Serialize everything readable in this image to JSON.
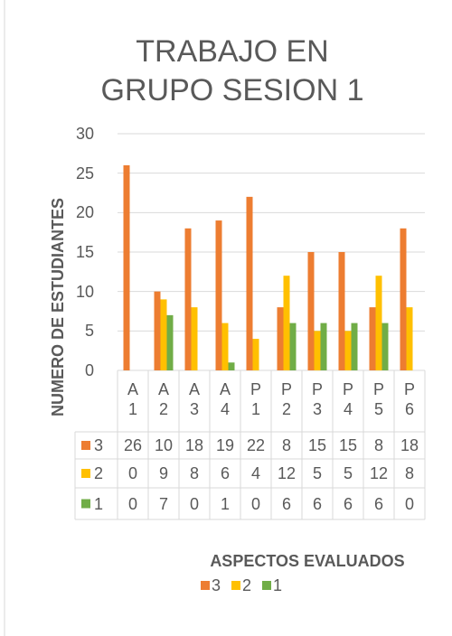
{
  "chart_data": {
    "type": "bar",
    "title": "TRABAJO EN GRUPO SESION 1",
    "categories": [
      "A 1",
      "A 2",
      "A 3",
      "A 4",
      "P 1",
      "P 2",
      "P 3",
      "P 4",
      "P 5",
      "P 6"
    ],
    "series": [
      {
        "name": "3",
        "color": "#ed7d31",
        "values": [
          26,
          10,
          18,
          19,
          22,
          8,
          15,
          15,
          8,
          18
        ]
      },
      {
        "name": "2",
        "color": "#ffc000",
        "values": [
          0,
          9,
          8,
          6,
          4,
          12,
          5,
          5,
          12,
          8
        ]
      },
      {
        "name": "1",
        "color": "#70ad47",
        "values": [
          0,
          7,
          0,
          1,
          0,
          6,
          6,
          6,
          6,
          0
        ]
      }
    ],
    "ylim": [
      0,
      30
    ],
    "yticks": [
      0,
      5,
      10,
      15,
      20,
      25,
      30
    ],
    "grid": true,
    "xlabel": "ASPECTOS EVALUADOS",
    "ylabel": "NUMERO DE ESTUDIANTES",
    "legend": "bottom"
  }
}
